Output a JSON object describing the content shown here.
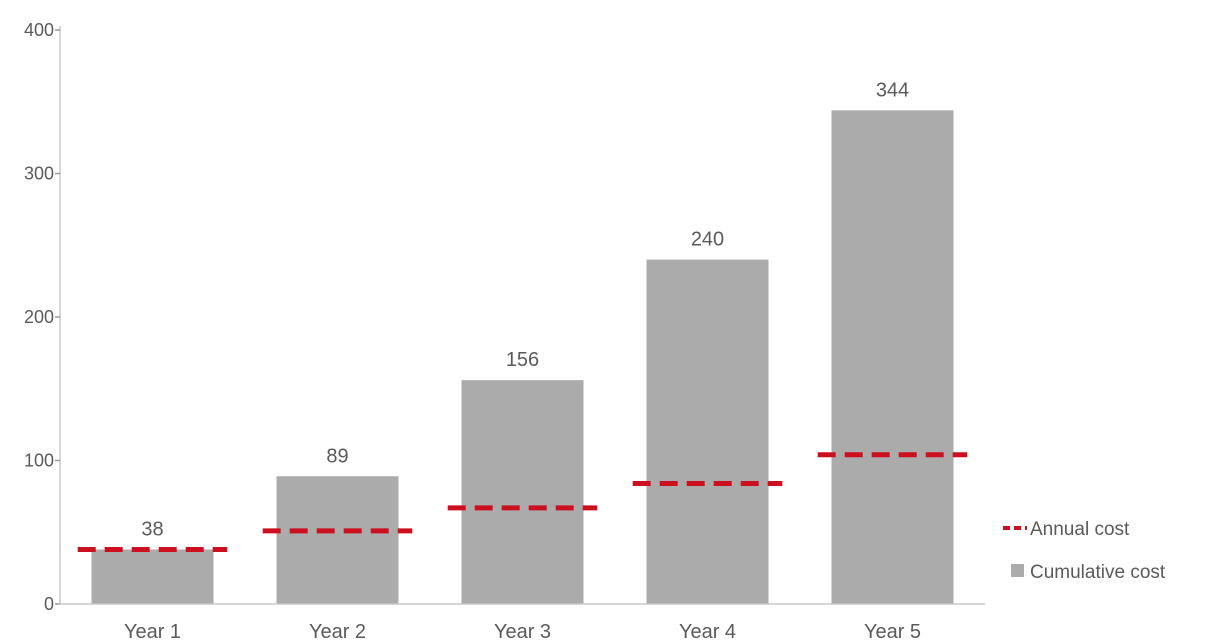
{
  "chart_data": {
    "type": "bar",
    "categories": [
      "Year 1",
      "Year 2",
      "Year 3",
      "Year 4",
      "Year 5"
    ],
    "series": [
      {
        "name": "Cumulative cost",
        "kind": "bar",
        "values": [
          38,
          89,
          156,
          240,
          344
        ],
        "color": "#ababab"
      },
      {
        "name": "Annual cost",
        "kind": "dashed-line",
        "values": [
          38,
          51,
          67,
          84,
          104
        ],
        "color": "#cc1020"
      }
    ],
    "data_labels": [
      "38",
      "89",
      "156",
      "240",
      "344"
    ],
    "title": "",
    "xlabel": "",
    "ylabel": "",
    "ylim": [
      0,
      400
    ],
    "yticks": [
      "0",
      "100",
      "200",
      "300",
      "400"
    ],
    "grid": false,
    "legend_position": "right"
  }
}
